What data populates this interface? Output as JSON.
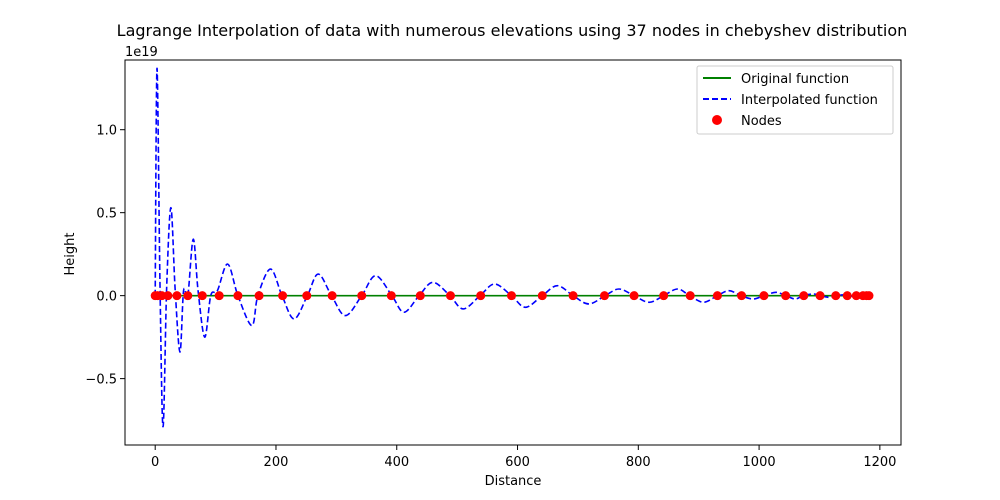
{
  "chart_data": {
    "type": "line",
    "title": "Lagrange Interpolation of data with numerous elevations using 37 nodes in chebyshev distribution",
    "xlabel": "Distance",
    "ylabel": "Height",
    "offset_label": "1e19",
    "xlim": [
      -50,
      1235
    ],
    "ylim": [
      -0.9,
      1.42
    ],
    "y_scale_factor": 1e+19,
    "xticks": [
      0,
      200,
      400,
      600,
      800,
      1000,
      1200
    ],
    "xtick_labels": [
      "0",
      "200",
      "400",
      "600",
      "800",
      "1000",
      "1200"
    ],
    "yticks": [
      -0.5,
      0.0,
      0.5,
      1.0
    ],
    "ytick_labels": [
      "−0.5",
      "0.0",
      "0.5",
      "1.0"
    ],
    "grid": false,
    "legend_position": "top-right",
    "colors": {
      "original": "#008000",
      "interpolated": "#0000ff",
      "nodes": "#ff0000"
    },
    "series": [
      {
        "name": "Original function",
        "style": "solid",
        "color": "#008000",
        "x": [
          0,
          1180
        ],
        "y": [
          0,
          0
        ]
      },
      {
        "name": "Interpolated function",
        "style": "dashed",
        "color": "#0000ff",
        "x": [
          0,
          3,
          8,
          13,
          19,
          26,
          33,
          41,
          47,
          54,
          63,
          71,
          82,
          92,
          103,
          120,
          137,
          160,
          170,
          191,
          210,
          230,
          252,
          270,
          292,
          315,
          342,
          365,
          392,
          412,
          437,
          460,
          488,
          510,
          538,
          562,
          590,
          613,
          641,
          666,
          692,
          718,
          745,
          768,
          793,
          818,
          842,
          865,
          885,
          908,
          931,
          950,
          970,
          990,
          1008,
          1028,
          1044,
          1060,
          1073,
          1090,
          1102,
          1115,
          1128,
          1140,
          1150,
          1158,
          1165,
          1172,
          1178,
          1183
        ],
        "y": [
          0,
          1.37,
          0.05,
          -0.79,
          0.05,
          0.53,
          0.04,
          -0.34,
          0.03,
          0.0,
          0.34,
          0.03,
          -0.25,
          0.0,
          0.03,
          0.19,
          0.0,
          -0.18,
          0.0,
          0.16,
          0.0,
          -0.14,
          0.0,
          0.13,
          0.0,
          -0.12,
          0.0,
          0.12,
          0.0,
          -0.1,
          0.0,
          0.08,
          0.0,
          -0.08,
          0.0,
          0.07,
          0.0,
          -0.07,
          0.0,
          0.06,
          0.0,
          -0.05,
          0.0,
          0.04,
          0.0,
          -0.04,
          0.0,
          0.04,
          0.0,
          -0.04,
          0.0,
          0.03,
          0.0,
          -0.02,
          0.0,
          0.02,
          0.0,
          -0.02,
          0.0,
          0.01,
          0.0,
          -0.01,
          0.0,
          0.005,
          0.0,
          -0.005,
          0.0,
          0.002,
          0.0,
          0.0
        ]
      },
      {
        "name": "Nodes",
        "style": "scatter",
        "color": "#ff0000",
        "x": [
          0,
          4,
          11,
          21,
          36,
          54,
          78,
          106,
          137,
          172,
          211,
          251,
          293,
          342,
          391,
          439,
          489,
          539,
          590,
          641,
          692,
          744,
          793,
          842,
          886,
          931,
          971,
          1008,
          1044,
          1074,
          1101,
          1127,
          1146,
          1161,
          1172,
          1178,
          1182
        ],
        "y": [
          0,
          0,
          0,
          0,
          0,
          0,
          0,
          0,
          0,
          0,
          0,
          0,
          0,
          0,
          0,
          0,
          0,
          0,
          0,
          0,
          0,
          0,
          0,
          0,
          0,
          0,
          0,
          0,
          0,
          0,
          0,
          0,
          0,
          0,
          0,
          0,
          0
        ]
      }
    ]
  }
}
